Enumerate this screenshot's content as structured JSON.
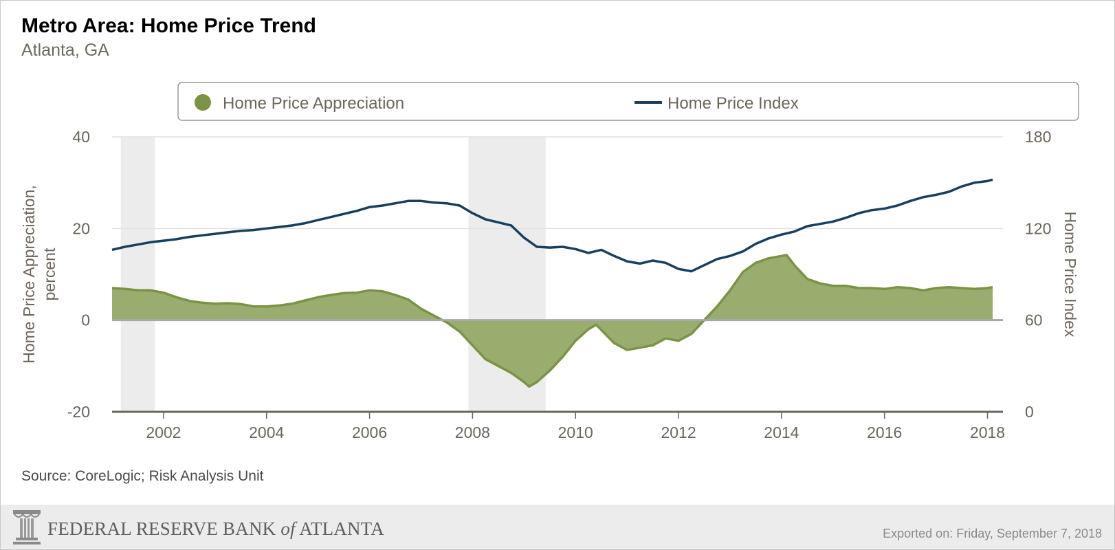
{
  "chart_data": {
    "type": "area+line",
    "title": "Metro Area: Home Price Trend",
    "subtitle": "Atlanta, GA",
    "source": "Source: CoreLogic; Risk Analysis Unit",
    "legend": {
      "placement": "top",
      "items": [
        "Home Price Appreciation",
        "Home Price Index"
      ]
    },
    "x_ticks": [
      "2002",
      "2004",
      "2006",
      "2008",
      "2010",
      "2012",
      "2014",
      "2016",
      "2018"
    ],
    "x_range": [
      2001.0,
      2018.3
    ],
    "left_axis": {
      "label": "Home Price Appreciation, percent",
      "ticks": [
        "40",
        "20",
        "0",
        "-20"
      ],
      "range": [
        -20,
        40
      ]
    },
    "right_axis": {
      "label": "Home Price Index",
      "ticks": [
        "180",
        "120",
        "60",
        "0"
      ],
      "range": [
        0,
        180
      ]
    },
    "recession_shading": [
      [
        2001.17,
        2001.83
      ],
      [
        2007.92,
        2009.42
      ]
    ],
    "series": [
      {
        "name": "Home Price Appreciation",
        "kind": "area",
        "axis": "left",
        "color": "#7a9344",
        "fill": "#98ad6e",
        "points": [
          [
            2001.0,
            7.0
          ],
          [
            2001.25,
            6.8
          ],
          [
            2001.5,
            6.5
          ],
          [
            2001.75,
            6.5
          ],
          [
            2002.0,
            6.0
          ],
          [
            2002.25,
            5.0
          ],
          [
            2002.5,
            4.2
          ],
          [
            2002.75,
            3.8
          ],
          [
            2003.0,
            3.6
          ],
          [
            2003.25,
            3.7
          ],
          [
            2003.5,
            3.5
          ],
          [
            2003.75,
            3.0
          ],
          [
            2004.0,
            3.0
          ],
          [
            2004.25,
            3.2
          ],
          [
            2004.5,
            3.6
          ],
          [
            2004.75,
            4.3
          ],
          [
            2005.0,
            5.0
          ],
          [
            2005.25,
            5.5
          ],
          [
            2005.5,
            5.9
          ],
          [
            2005.75,
            6.0
          ],
          [
            2006.0,
            6.5
          ],
          [
            2006.25,
            6.3
          ],
          [
            2006.5,
            5.5
          ],
          [
            2006.75,
            4.5
          ],
          [
            2007.0,
            2.5
          ],
          [
            2007.25,
            1.0
          ],
          [
            2007.5,
            -0.5
          ],
          [
            2007.75,
            -2.5
          ],
          [
            2008.0,
            -5.5
          ],
          [
            2008.25,
            -8.5
          ],
          [
            2008.5,
            -10.0
          ],
          [
            2008.75,
            -11.5
          ],
          [
            2009.0,
            -13.5
          ],
          [
            2009.1,
            -14.5
          ],
          [
            2009.25,
            -13.5
          ],
          [
            2009.5,
            -11.0
          ],
          [
            2009.75,
            -8.0
          ],
          [
            2010.0,
            -4.5
          ],
          [
            2010.25,
            -2.0
          ],
          [
            2010.4,
            -1.0
          ],
          [
            2010.75,
            -5.0
          ],
          [
            2011.0,
            -6.5
          ],
          [
            2011.25,
            -6.0
          ],
          [
            2011.5,
            -5.5
          ],
          [
            2011.75,
            -4.0
          ],
          [
            2012.0,
            -4.5
          ],
          [
            2012.25,
            -3.0
          ],
          [
            2012.5,
            0.0
          ],
          [
            2012.75,
            3.0
          ],
          [
            2013.0,
            6.5
          ],
          [
            2013.25,
            10.5
          ],
          [
            2013.5,
            12.5
          ],
          [
            2013.75,
            13.5
          ],
          [
            2014.0,
            14.0
          ],
          [
            2014.1,
            14.2
          ],
          [
            2014.25,
            12.0
          ],
          [
            2014.5,
            9.0
          ],
          [
            2014.75,
            8.0
          ],
          [
            2015.0,
            7.5
          ],
          [
            2015.25,
            7.5
          ],
          [
            2015.5,
            7.0
          ],
          [
            2015.75,
            7.0
          ],
          [
            2016.0,
            6.8
          ],
          [
            2016.25,
            7.2
          ],
          [
            2016.5,
            7.0
          ],
          [
            2016.75,
            6.5
          ],
          [
            2017.0,
            7.0
          ],
          [
            2017.25,
            7.2
          ],
          [
            2017.5,
            7.0
          ],
          [
            2017.75,
            6.8
          ],
          [
            2018.0,
            7.0
          ],
          [
            2018.1,
            7.2
          ]
        ]
      },
      {
        "name": "Home Price Index",
        "kind": "line",
        "axis": "right",
        "color": "#17405e",
        "points": [
          [
            2001.0,
            106
          ],
          [
            2001.25,
            108
          ],
          [
            2001.5,
            109.5
          ],
          [
            2001.75,
            111
          ],
          [
            2002.0,
            112
          ],
          [
            2002.25,
            113
          ],
          [
            2002.5,
            114.5
          ],
          [
            2002.75,
            115.5
          ],
          [
            2003.0,
            116.5
          ],
          [
            2003.25,
            117.5
          ],
          [
            2003.5,
            118.5
          ],
          [
            2003.75,
            119
          ],
          [
            2004.0,
            120
          ],
          [
            2004.25,
            121
          ],
          [
            2004.5,
            122
          ],
          [
            2004.75,
            123.5
          ],
          [
            2005.0,
            125.5
          ],
          [
            2005.25,
            127.5
          ],
          [
            2005.5,
            129.5
          ],
          [
            2005.75,
            131.5
          ],
          [
            2006.0,
            134
          ],
          [
            2006.25,
            135
          ],
          [
            2006.5,
            136.5
          ],
          [
            2006.75,
            138
          ],
          [
            2007.0,
            138
          ],
          [
            2007.25,
            137
          ],
          [
            2007.5,
            136.5
          ],
          [
            2007.75,
            135
          ],
          [
            2008.0,
            130
          ],
          [
            2008.25,
            126
          ],
          [
            2008.5,
            124
          ],
          [
            2008.75,
            122
          ],
          [
            2009.0,
            114
          ],
          [
            2009.25,
            108
          ],
          [
            2009.5,
            107.5
          ],
          [
            2009.75,
            108
          ],
          [
            2010.0,
            106.5
          ],
          [
            2010.25,
            104
          ],
          [
            2010.5,
            106
          ],
          [
            2010.75,
            102
          ],
          [
            2011.0,
            98.5
          ],
          [
            2011.25,
            97
          ],
          [
            2011.5,
            99
          ],
          [
            2011.75,
            97.5
          ],
          [
            2012.0,
            93.5
          ],
          [
            2012.25,
            92
          ],
          [
            2012.5,
            96
          ],
          [
            2012.75,
            100
          ],
          [
            2013.0,
            102
          ],
          [
            2013.25,
            105
          ],
          [
            2013.5,
            110
          ],
          [
            2013.75,
            113.5
          ],
          [
            2014.0,
            116
          ],
          [
            2014.25,
            118
          ],
          [
            2014.5,
            121.5
          ],
          [
            2014.75,
            123
          ],
          [
            2015.0,
            124.5
          ],
          [
            2015.25,
            127
          ],
          [
            2015.5,
            130
          ],
          [
            2015.75,
            132
          ],
          [
            2016.0,
            133
          ],
          [
            2016.25,
            135
          ],
          [
            2016.5,
            138
          ],
          [
            2016.75,
            140.5
          ],
          [
            2017.0,
            142
          ],
          [
            2017.25,
            144
          ],
          [
            2017.5,
            147.5
          ],
          [
            2017.75,
            150
          ],
          [
            2018.0,
            151
          ],
          [
            2018.1,
            152
          ]
        ]
      }
    ]
  },
  "footer": {
    "brand": "FEDERAL RESERVE BANK of ATLANTA",
    "brand_main": "FEDERAL RESERVE BANK",
    "brand_of": "of",
    "brand_end": "ATLANTA",
    "exported": "Exported on: Friday, September 7, 2018"
  }
}
